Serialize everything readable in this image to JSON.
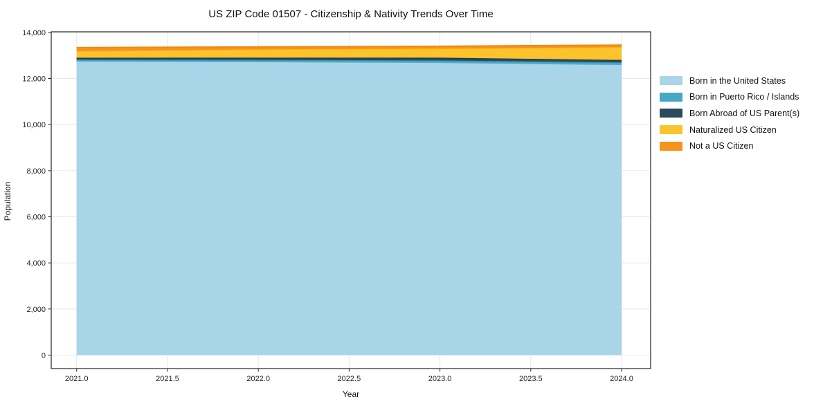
{
  "figure": {
    "title": "US ZIP Code 01507 - Citizenship & Nativity Trends Over Time",
    "xlabel": "Year",
    "ylabel": "Population"
  },
  "chart_data": {
    "type": "area",
    "stacked": true,
    "title": "US ZIP Code 01507 - Citizenship & Nativity Trends Over Time",
    "xlabel": "Year",
    "ylabel": "Population",
    "grid": true,
    "legend_position": "right",
    "xlim": [
      2020.86,
      2024.16
    ],
    "ylim": [
      -585,
      14025
    ],
    "x": [
      2021,
      2022,
      2023,
      2024
    ],
    "series": [
      {
        "name": "Born in the United States",
        "values": [
          12760,
          12735,
          12700,
          12610
        ],
        "fill": "#a9d5e9",
        "edge": "#61abd0"
      },
      {
        "name": "Born in Puerto Rico / Islands",
        "values": [
          60,
          70,
          85,
          90
        ],
        "fill": "#45a9c5",
        "edge": "#2e94b5"
      },
      {
        "name": "Born Abroad of US Parent(s)",
        "values": [
          80,
          100,
          120,
          105
        ],
        "fill": "#2b4a5e",
        "edge": "#1a3648"
      },
      {
        "name": "Naturalized US Citizen",
        "values": [
          290,
          360,
          395,
          555
        ],
        "fill": "#fcc32d",
        "edge": "#fbb40e"
      },
      {
        "name": "Not a US Citizen",
        "values": [
          150,
          105,
          100,
          90
        ],
        "fill": "#f6931e",
        "edge": "#ef8a10"
      }
    ],
    "stack_totals": [
      13340,
      13370,
      13400,
      13450
    ],
    "x_ticks": {
      "values": [
        2021.0,
        2021.5,
        2022.0,
        2022.5,
        2023.0,
        2023.5,
        2024.0
      ],
      "labels": [
        "2021.0",
        "2021.5",
        "2022.0",
        "2022.5",
        "2023.0",
        "2023.5",
        "2024.0"
      ]
    },
    "y_ticks": {
      "values": [
        0,
        2000,
        4000,
        6000,
        8000,
        10000,
        12000,
        14000
      ],
      "labels": [
        "0",
        "2,000",
        "4,000",
        "6,000",
        "8,000",
        "10,000",
        "12,000",
        "14,000"
      ]
    }
  },
  "legend": {
    "items": [
      {
        "label": "Born in the United States",
        "color": "#a9d5e9"
      },
      {
        "label": "Born in Puerto Rico / Islands",
        "color": "#45a9c5"
      },
      {
        "label": "Born Abroad of US Parent(s)",
        "color": "#2b4a5e"
      },
      {
        "label": "Naturalized US Citizen",
        "color": "#fcc32d"
      },
      {
        "label": "Not a US Citizen",
        "color": "#f6931e"
      }
    ]
  },
  "style": {
    "spine_color": "#262626",
    "grid_color": "#e7e7e7",
    "tick_label_color": "#262626",
    "background": "#ffffff"
  }
}
